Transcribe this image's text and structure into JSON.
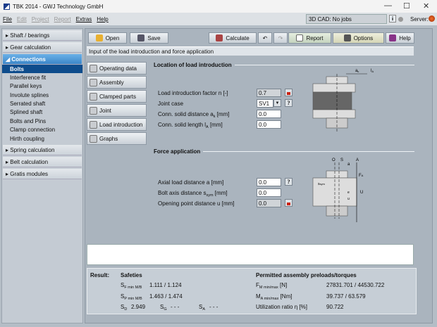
{
  "window": {
    "title": "TBK 2014 - GWJ Technology GmbH",
    "minimize": "—",
    "maximize": "☐",
    "close": "✕"
  },
  "menu": [
    {
      "label": "File",
      "enabled": true
    },
    {
      "label": "Edit",
      "enabled": false
    },
    {
      "label": "Project",
      "enabled": false
    },
    {
      "label": "Report",
      "enabled": false
    },
    {
      "label": "Extras",
      "enabled": true
    },
    {
      "label": "Help",
      "enabled": true
    }
  ],
  "status": {
    "cad": "3D CAD: No jobs",
    "info": "i",
    "server": "Server:"
  },
  "sidebar": {
    "groups_top": [
      "Shaft / bearings",
      "Gear calculation"
    ],
    "open_group": "Connections",
    "items": [
      "Bolts",
      "Interference fit",
      "Parallel keys",
      "Involute splines",
      "Serrated shaft",
      "Splined shaft",
      "Bolts and Pins",
      "Clamp connection",
      "Hirth coupling"
    ],
    "selected": "Bolts",
    "groups_bottom": [
      "Spring calculation",
      "Belt calculation",
      "Gratis modules"
    ]
  },
  "toolbar": {
    "open": "Open",
    "save": "Save",
    "calculate": "Calculate",
    "undo": "↶",
    "redo": "↷",
    "report": "Report",
    "options": "Options",
    "help": "Help"
  },
  "subtitle": "Input of the load introduction and force application",
  "left_buttons": [
    "Operating data",
    "Assembly",
    "Clamped parts",
    "Joint",
    "Load introduction",
    "Graphs"
  ],
  "load_intro": {
    "heading": "Location of load introduction",
    "n_label": "Load introduction factor n [-]",
    "n_value": "0.7",
    "joint_label": "Joint case",
    "joint_value": "SV1",
    "ak_label_pre": "Conn. solid distance a",
    "ak_sub": "k",
    "ak_label_post": " [mm]",
    "ak_value": "0.0",
    "la_label_pre": "Conn. solid length l",
    "la_sub": "A",
    "la_label_post": " [mm]",
    "la_value": "0.0",
    "help": "?"
  },
  "force_app": {
    "heading": "Force application",
    "a_label": "Axial load distance a [mm]",
    "a_value": "0.0",
    "s_label_pre": "Bolt axis distance s",
    "s_sub": "sym",
    "s_label_post": " [mm]",
    "s_value": "0.0",
    "u_label": "Opening point distance u [mm]",
    "u_value": "0.0",
    "help": "?"
  },
  "diagram1": {
    "ak": "a",
    "ak_sub": "k",
    "la": "l",
    "la_sub": "A"
  },
  "diagram2": {
    "O": "O",
    "S": "S",
    "A": "A",
    "a": "a",
    "ssym": "s",
    "ssym_sub": "sym",
    "e": "e",
    "u": "u",
    "U": "U",
    "FA": "F",
    "FA_sub": "A"
  },
  "result": {
    "label": "Result:",
    "safeties": "Safeties",
    "sf_sym": "S",
    "sf_sub": "F min M/B",
    "sf_val": "1.111  /  1.124",
    "sp_sym": "S",
    "sp_sub": "P min M/B",
    "sp_val": "1.463  /  1.474",
    "sd_sym": "S",
    "sd_sub": "D",
    "sd_val": "2.949",
    "sg_sym": "S",
    "sg_sub": "G",
    "sg_val": "- - -",
    "sa_sym": "S",
    "sa_sub": "A",
    "sa_val": "- - -",
    "permitted": "Permitted assembly preloads/torques",
    "fm_sym": "F",
    "fm_sub": "M min/max",
    "fm_unit": " [N]",
    "fm_val": "27831.701  /  44530.722",
    "ma_sym": "M",
    "ma_sub": "A min/max",
    "ma_unit": " [Nm]",
    "ma_val": "39.737  /  63.579",
    "util_label": "Utilization ratio η [%]",
    "util_val": "90.722"
  }
}
